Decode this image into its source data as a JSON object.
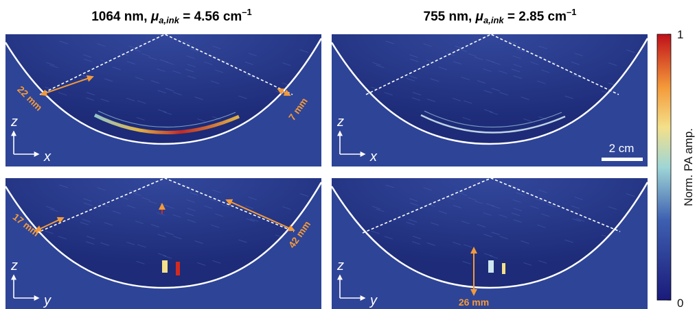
{
  "titles": [
    {
      "main": "1064 nm, ",
      "symbol": "μ",
      "subscript": "a,ink",
      "rest": " = 4.56 cm",
      "superscript": "–1"
    },
    {
      "main": "755 nm, ",
      "symbol": "μ",
      "subscript": "a,ink",
      "rest": " = 2.85 cm",
      "superscript": "–1"
    }
  ],
  "panels": [
    {
      "axes": [
        "z",
        "x"
      ],
      "annotations": [
        "22 mm",
        "7 mm"
      ]
    },
    {
      "axes": [
        "z",
        "x"
      ],
      "scale_bar": "2 cm"
    },
    {
      "axes": [
        "z",
        "y"
      ],
      "annotations": [
        "17 mm",
        "42 mm"
      ]
    },
    {
      "axes": [
        "z",
        "y"
      ],
      "annotations": [
        "26 mm"
      ]
    }
  ],
  "colorbar": {
    "label": "Norm. PA amp.",
    "ticks": [
      0,
      1
    ]
  }
}
